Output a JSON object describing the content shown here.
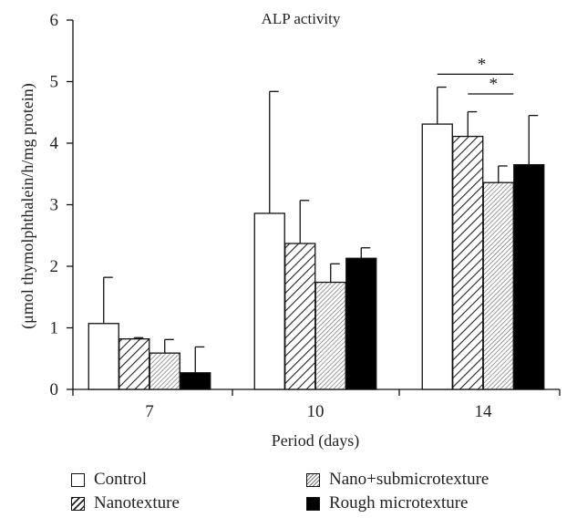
{
  "chart_data": {
    "type": "bar",
    "title": "ALP activity",
    "xlabel": "Period (days)",
    "ylabel": "(μmol thymolphthalein/h/mg protein)",
    "ylim": [
      0,
      6
    ],
    "yticks": [
      "0",
      "1",
      "2",
      "3",
      "4",
      "5",
      "6"
    ],
    "categories": [
      "7",
      "10",
      "14"
    ],
    "series": [
      {
        "name": "Control",
        "values": [
          1.07,
          2.86,
          4.31
        ],
        "errors": [
          0.75,
          1.98,
          0.6
        ],
        "fill": "white",
        "color": "#ffffff"
      },
      {
        "name": "Nanotexture",
        "values": [
          0.82,
          2.37,
          4.11
        ],
        "errors": [
          0.02,
          0.7,
          0.4
        ],
        "fill": "hatch",
        "color": "#222222"
      },
      {
        "name": "Nano+submicrotexture",
        "values": [
          0.59,
          1.74,
          3.36
        ],
        "errors": [
          0.22,
          0.3,
          0.27
        ],
        "fill": "fine-hatch",
        "color": "#777777"
      },
      {
        "name": "Rough microtexture",
        "values": [
          0.27,
          2.13,
          3.65
        ],
        "errors": [
          0.42,
          0.17,
          0.8
        ],
        "fill": "black",
        "color": "#000000"
      }
    ],
    "annotations": [
      {
        "text": "*",
        "category": "14",
        "from_series": 0,
        "to_series": 2,
        "value": 5.12
      },
      {
        "text": "*",
        "category": "14",
        "from_series": 1,
        "to_series": 2,
        "value": 4.8
      }
    ],
    "grid": false,
    "legend_position": "bottom"
  },
  "legend": {
    "items": [
      "Control",
      "Nanotexture",
      "Nano+submicrotexture",
      "Rough microtexture"
    ]
  }
}
